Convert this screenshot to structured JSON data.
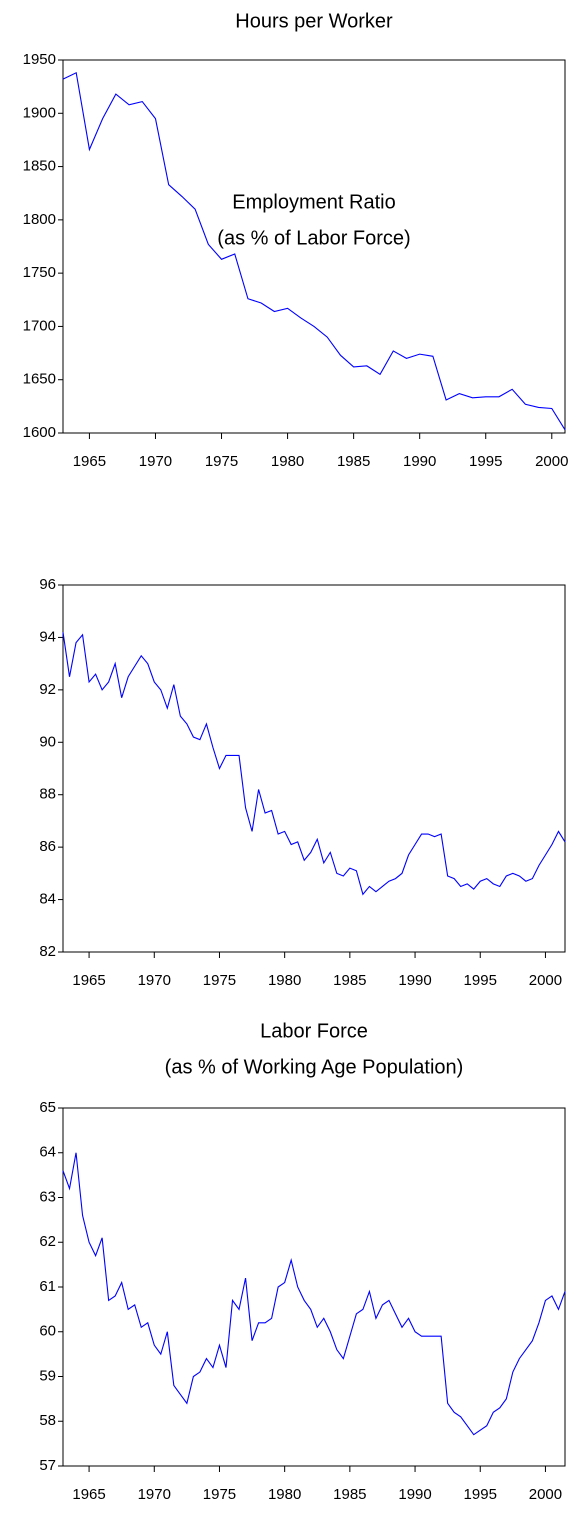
{
  "chart_data": [
    {
      "type": "line",
      "title": "Hours per Worker",
      "color": "#0000ff",
      "x": [
        1963,
        1964,
        1965,
        1966,
        1967,
        1968,
        1969,
        1970,
        1971,
        1972,
        1973,
        1974,
        1975,
        1976,
        1977,
        1978,
        1979,
        1980,
        1981,
        1982,
        1983,
        1984,
        1985,
        1986,
        1987,
        1988,
        1989,
        1990,
        1991,
        1992,
        1993,
        1994,
        1995,
        1996,
        1997,
        1998,
        1999,
        2000,
        2001
      ],
      "values": [
        1932,
        1938,
        1866,
        1895,
        1918,
        1908,
        1911,
        1895,
        1833,
        1822,
        1810,
        1777,
        1763,
        1768,
        1726,
        1722,
        1714,
        1717,
        1708,
        1700,
        1690,
        1673,
        1662,
        1663,
        1655,
        1677,
        1670,
        1674,
        1672,
        1631,
        1637,
        1633,
        1634,
        1634,
        1641,
        1627,
        1624,
        1623,
        1603
      ],
      "xlim": [
        1963,
        2001
      ],
      "xticks": [
        1965,
        1970,
        1975,
        1980,
        1985,
        1990,
        1995,
        2000
      ],
      "ylim": [
        1600,
        1950
      ],
      "yticks": [
        1600,
        1650,
        1700,
        1750,
        1800,
        1850,
        1900,
        1950
      ]
    },
    {
      "type": "line",
      "title": "Employment Ratio",
      "subtitle": "(as % of Labor Force)",
      "color": "#0000ff",
      "x": [
        1963,
        1963.5,
        1964,
        1964.5,
        1965,
        1965.5,
        1966,
        1966.5,
        1967,
        1967.5,
        1968,
        1968.5,
        1969,
        1969.5,
        1970,
        1970.5,
        1971,
        1971.5,
        1972,
        1972.5,
        1973,
        1973.5,
        1974,
        1974.5,
        1975,
        1975.5,
        1976,
        1976.5,
        1977,
        1977.5,
        1978,
        1978.5,
        1979,
        1979.5,
        1980,
        1980.5,
        1981,
        1981.5,
        1982,
        1982.5,
        1983,
        1983.5,
        1984,
        1984.5,
        1985,
        1985.5,
        1986,
        1986.5,
        1987,
        1987.5,
        1988,
        1988.5,
        1989,
        1989.5,
        1990,
        1990.5,
        1991,
        1991.5,
        1992,
        1992.5,
        1993,
        1993.5,
        1994,
        1994.5,
        1995,
        1995.5,
        1996,
        1996.5,
        1997,
        1997.5,
        1998,
        1998.5,
        1999,
        1999.5,
        2000,
        2000.5,
        2001,
        2001.5
      ],
      "values": [
        94.2,
        92.5,
        93.8,
        94.1,
        92.3,
        92.6,
        92.0,
        92.3,
        93.0,
        91.7,
        92.5,
        92.9,
        93.3,
        93.0,
        92.3,
        92.0,
        91.3,
        92.2,
        91.0,
        90.7,
        90.2,
        90.1,
        90.7,
        89.8,
        89.0,
        89.5,
        89.5,
        89.5,
        87.5,
        86.6,
        88.2,
        87.3,
        87.4,
        86.5,
        86.6,
        86.1,
        86.2,
        85.5,
        85.8,
        86.3,
        85.4,
        85.8,
        85.0,
        84.9,
        85.2,
        85.1,
        84.2,
        84.5,
        84.3,
        84.5,
        84.7,
        84.8,
        85.0,
        85.7,
        86.1,
        86.5,
        86.5,
        86.4,
        86.5,
        84.9,
        84.8,
        84.5,
        84.6,
        84.4,
        84.7,
        84.8,
        84.6,
        84.5,
        84.9,
        85.0,
        84.9,
        84.7,
        84.8,
        85.3,
        85.7,
        86.1,
        86.6,
        86.2
      ],
      "xlim": [
        1963,
        2001.5
      ],
      "xticks": [
        1965,
        1970,
        1975,
        1980,
        1985,
        1990,
        1995,
        2000
      ],
      "ylim": [
        82,
        96
      ],
      "yticks": [
        82,
        84,
        86,
        88,
        90,
        92,
        94,
        96
      ]
    },
    {
      "type": "line",
      "title": "Labor Force",
      "subtitle": "(as % of Working Age Population)",
      "color": "#0000ff",
      "x": [
        1963,
        1963.5,
        1964,
        1964.5,
        1965,
        1965.5,
        1966,
        1966.5,
        1967,
        1967.5,
        1968,
        1968.5,
        1969,
        1969.5,
        1970,
        1970.5,
        1971,
        1971.5,
        1972,
        1972.5,
        1973,
        1973.5,
        1974,
        1974.5,
        1975,
        1975.5,
        1976,
        1976.5,
        1977,
        1977.5,
        1978,
        1978.5,
        1979,
        1979.5,
        1980,
        1980.5,
        1981,
        1981.5,
        1982,
        1982.5,
        1983,
        1983.5,
        1984,
        1984.5,
        1985,
        1985.5,
        1986,
        1986.5,
        1987,
        1987.5,
        1988,
        1988.5,
        1989,
        1989.5,
        1990,
        1990.5,
        1991,
        1991.5,
        1992,
        1992.5,
        1993,
        1993.5,
        1994,
        1994.5,
        1995,
        1995.5,
        1996,
        1996.5,
        1997,
        1997.5,
        1998,
        1998.5,
        1999,
        1999.5,
        2000,
        2000.5,
        2001,
        2001.5
      ],
      "values": [
        63.6,
        63.2,
        64.0,
        62.6,
        62.0,
        61.7,
        62.1,
        60.7,
        60.8,
        61.1,
        60.5,
        60.6,
        60.1,
        60.2,
        59.7,
        59.5,
        60.0,
        58.8,
        58.6,
        58.4,
        59.0,
        59.1,
        59.4,
        59.2,
        59.7,
        59.2,
        60.7,
        60.5,
        61.2,
        59.8,
        60.2,
        60.2,
        60.3,
        61.0,
        61.1,
        61.6,
        61.0,
        60.7,
        60.5,
        60.1,
        60.3,
        60.0,
        59.6,
        59.4,
        59.9,
        60.4,
        60.5,
        60.9,
        60.3,
        60.6,
        60.7,
        60.4,
        60.1,
        60.3,
        60.0,
        59.9,
        59.9,
        59.9,
        59.9,
        58.4,
        58.2,
        58.1,
        57.9,
        57.7,
        57.8,
        57.9,
        58.2,
        58.3,
        58.5,
        59.1,
        59.4,
        59.6,
        59.8,
        60.2,
        60.7,
        60.8,
        60.5,
        60.9
      ],
      "xlim": [
        1963,
        2001.5
      ],
      "xticks": [
        1965,
        1970,
        1975,
        1980,
        1985,
        1990,
        1995,
        2000
      ],
      "ylim": [
        57,
        65
      ],
      "yticks": [
        57,
        58,
        59,
        60,
        61,
        62,
        63,
        64,
        65
      ]
    }
  ]
}
